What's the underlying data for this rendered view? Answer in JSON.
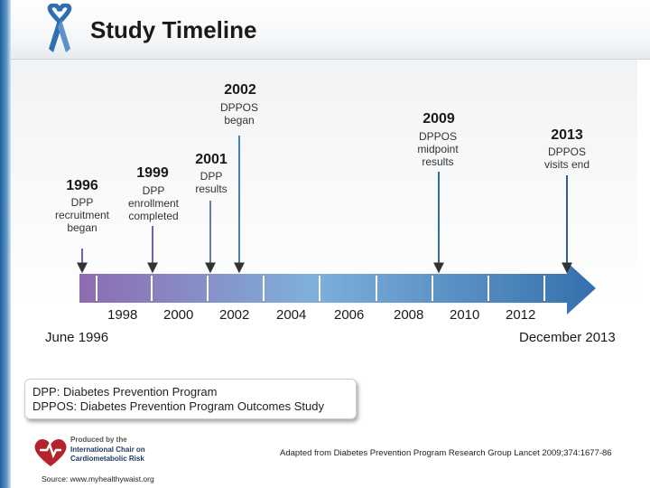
{
  "header": {
    "title": "Study Timeline"
  },
  "events": [
    {
      "year": "1996",
      "label": "DPP\nrecruitment\nbegan"
    },
    {
      "year": "1999",
      "label": "DPP\nenrollment\ncompleted"
    },
    {
      "year": "2001",
      "label": "DPP\nresults"
    },
    {
      "year": "2002",
      "label": "DPPOS\nbegan"
    },
    {
      "year": "2009",
      "label": "DPPOS\nmidpoint\nresults"
    },
    {
      "year": "2013",
      "label": "DPPOS\nvisits end"
    }
  ],
  "axis": {
    "ticks": [
      "1998",
      "2000",
      "2002",
      "2004",
      "2006",
      "2008",
      "2010",
      "2012"
    ],
    "start_label": "June 1996",
    "end_label": "December 2013"
  },
  "legend": {
    "line1": "DPP: Diabetes Prevention Program",
    "line2": "DPPOS: Diabetes Prevention Program Outcomes Study"
  },
  "logo": {
    "line1": "Produced by the",
    "line2": "International Chair on",
    "line3": "Cardiometabolic Risk"
  },
  "citation": "Adapted from Diabetes Prevention Program Research Group Lancet 2009;374:1677-86",
  "source": "Source: www.myhealthywaist.org",
  "colors": {
    "arrow_start": "#8e6bb0",
    "arrow_mid": "#7fb0dc",
    "arrow_end": "#3570ad",
    "accent_red": "#b3232e"
  }
}
